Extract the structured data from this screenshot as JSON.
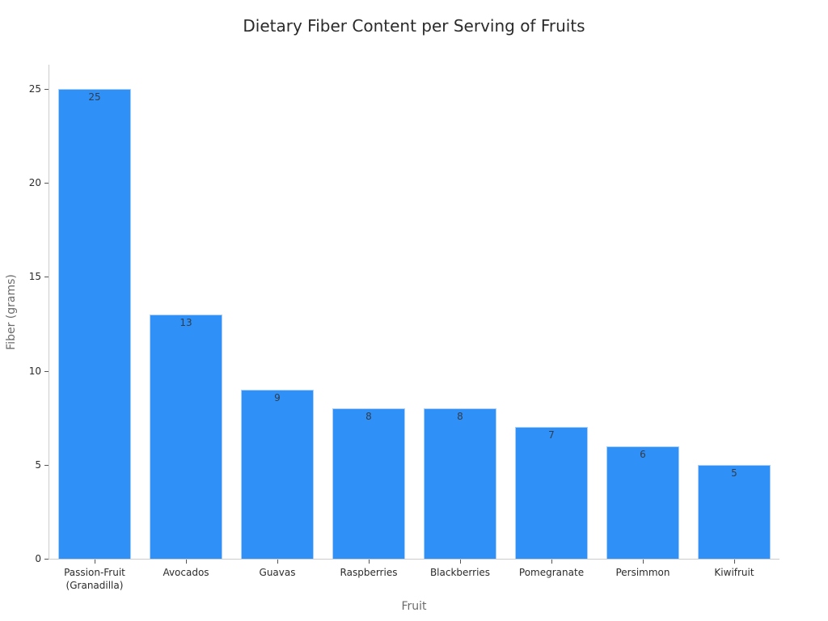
{
  "chart_data": {
    "type": "bar",
    "title": "Dietary Fiber Content per Serving of Fruits",
    "xlabel": "Fruit",
    "ylabel": "Fiber (grams)",
    "categories": [
      "Passion-Fruit (Granadilla)",
      "Avocados",
      "Guavas",
      "Raspberries",
      "Blackberries",
      "Pomegranate",
      "Persimmon",
      "Kiwifruit"
    ],
    "category_lines": [
      [
        "Passion-Fruit",
        "(Granadilla)"
      ],
      [
        "Avocados"
      ],
      [
        "Guavas"
      ],
      [
        "Raspberries"
      ],
      [
        "Blackberries"
      ],
      [
        "Pomegranate"
      ],
      [
        "Persimmon"
      ],
      [
        "Kiwifruit"
      ]
    ],
    "values": [
      25,
      13,
      9,
      8,
      8,
      7,
      6,
      5
    ],
    "value_labels": [
      "25",
      "13",
      "9",
      "8",
      "8",
      "7",
      "6",
      "5"
    ],
    "yticks": [
      "0",
      "5",
      "10",
      "15",
      "20",
      "25"
    ],
    "ylim": [
      0,
      26.3
    ],
    "grid": false,
    "legend": null,
    "bar_color": "#2f91f7"
  }
}
